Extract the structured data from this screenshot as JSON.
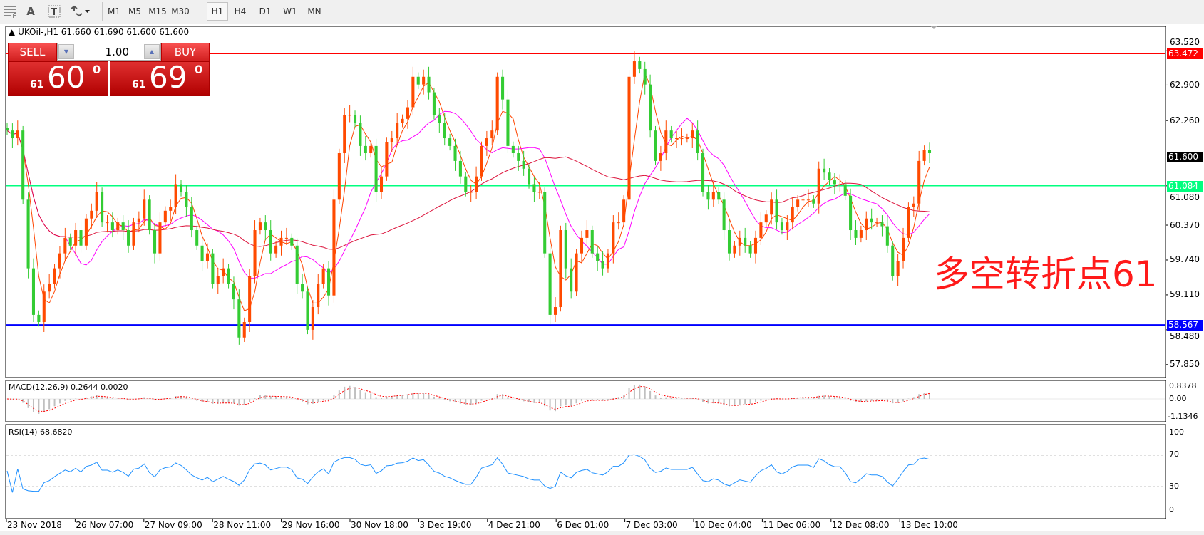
{
  "toolbar": {
    "icons": [
      "grid-f-icon",
      "text-a-icon",
      "text-label-icon",
      "arrows-dropdown-icon"
    ],
    "text_a": "A",
    "timeframes": [
      "M1",
      "M5",
      "M15",
      "M30",
      "H1",
      "H4",
      "D1",
      "W1",
      "MN"
    ],
    "active_timeframe": "H1"
  },
  "chart": {
    "header": "UKOil-,H1  61.660 61.690 61.600 61.600",
    "symbol": "UKOil-",
    "timeframe": "H1",
    "annotation": "多空转折点61",
    "colors": {
      "bull": "#ff4a00",
      "bear": "#33cc33",
      "ma_fast": "#ff4500",
      "ma_mid": "#ff00ff",
      "ma_slow": "#dc143c",
      "resistance": "#ff0000",
      "pivot": "#00ff7f",
      "support": "#0000ff",
      "bid": "#c0c0c0",
      "rsi": "#1e90ff",
      "macd_signal": "#ff0000",
      "macd_hist": "#c0c0c0"
    }
  },
  "trade_panel": {
    "sell_label": "SELL",
    "buy_label": "BUY",
    "lot": "1.00",
    "sell_price_big": "61",
    "sell_price_main": "60",
    "sell_price_sup": "0",
    "buy_price_big": "61",
    "buy_price_main": "69",
    "buy_price_sup": "0"
  },
  "price_axis": {
    "ticks": [
      "63.520",
      "62.900",
      "62.260",
      "61.080",
      "60.370",
      "59.740",
      "59.110",
      "58.480",
      "57.850"
    ],
    "tick_values": [
      63.52,
      62.9,
      62.26,
      61.08,
      60.37,
      59.74,
      59.11,
      58.48,
      57.85
    ]
  },
  "levels": [
    {
      "label": "63.472",
      "value": 63.472,
      "color": "#ff0000"
    },
    {
      "label": "61.600",
      "value": 61.6,
      "color": "#000000"
    },
    {
      "label": "61.084",
      "value": 61.084,
      "color": "#00ff7f"
    },
    {
      "label": "58.567",
      "value": 58.567,
      "color": "#0000ff"
    }
  ],
  "macd": {
    "label": "MACD(12,26,9) 0.2644 0.0020",
    "ticks": [
      "0.8378",
      "0.00",
      "-1.1346"
    ]
  },
  "rsi": {
    "label": "RSI(14) 68.6820",
    "ticks": [
      "100",
      "70",
      "30",
      "0"
    ]
  },
  "time_axis": [
    "23 Nov 2018",
    "26 Nov 07:00",
    "27 Nov 09:00",
    "28 Nov 11:00",
    "29 Nov 16:00",
    "30 Nov 18:00",
    "3 Dec 19:00",
    "4 Dec 21:00",
    "6 Dec 01:00",
    "7 Dec 03:00",
    "10 Dec 04:00",
    "11 Dec 06:00",
    "12 Dec 08:00",
    "13 Dec 10:00"
  ],
  "chart_data": {
    "type": "candlestick",
    "closes": [
      62.08,
      61.94,
      62.08,
      60.83,
      59.59,
      58.75,
      58.62,
      59.17,
      59.31,
      59.59,
      59.86,
      60.14,
      60.0,
      60.28,
      60.0,
      60.49,
      60.63,
      60.97,
      60.42,
      60.42,
      60.28,
      60.42,
      60.28,
      60.0,
      60.42,
      60.49,
      60.83,
      60.28,
      59.86,
      60.42,
      60.63,
      60.7,
      61.11,
      60.97,
      60.7,
      60.28,
      60.0,
      59.72,
      59.86,
      59.31,
      59.45,
      59.59,
      59.31,
      59.03,
      58.34,
      58.62,
      59.45,
      60.28,
      60.42,
      60.28,
      59.86,
      60.0,
      60.14,
      60.14,
      60.0,
      59.31,
      59.17,
      58.48,
      58.89,
      59.31,
      59.59,
      59.1,
      60.83,
      61.67,
      62.36,
      62.36,
      62.22,
      61.8,
      61.67,
      61.8,
      60.97,
      61.25,
      61.87,
      61.94,
      62.22,
      62.29,
      62.5,
      63.05,
      62.91,
      63.05,
      62.77,
      62.36,
      62.22,
      61.94,
      61.8,
      61.53,
      61.25,
      60.97,
      60.97,
      61.25,
      61.8,
      61.94,
      62.08,
      63.05,
      62.64,
      61.8,
      61.67,
      61.53,
      61.39,
      61.11,
      60.97,
      60.97,
      59.86,
      58.75,
      58.89,
      60.28,
      59.59,
      59.17,
      59.86,
      60.14,
      60.28,
      59.86,
      59.72,
      59.59,
      59.86,
      60.42,
      60.42,
      60.83,
      63.05,
      63.33,
      63.19,
      62.91,
      62.08,
      61.53,
      61.67,
      62.08,
      61.94,
      61.94,
      61.94,
      61.94,
      62.08,
      61.67,
      60.97,
      60.83,
      60.97,
      60.83,
      60.28,
      59.86,
      60.0,
      60.14,
      60.0,
      59.86,
      60.14,
      60.42,
      60.56,
      60.83,
      60.42,
      60.28,
      60.42,
      60.7,
      60.83,
      60.83,
      60.83,
      60.76,
      61.39,
      61.32,
      61.18,
      61.11,
      61.11,
      60.9,
      60.28,
      60.14,
      60.28,
      60.49,
      60.42,
      60.42,
      60.35,
      60.0,
      59.45,
      59.72,
      60.14,
      60.7,
      60.76,
      61.53,
      61.73,
      61.67
    ],
    "last": {
      "open": 61.66,
      "high": 61.69,
      "low": 61.6,
      "close": 61.6
    },
    "ylim": [
      57.6,
      63.75
    ],
    "indicators": [
      "moving averages (3)",
      "MACD(12,26,9)",
      "RSI(14)"
    ]
  }
}
